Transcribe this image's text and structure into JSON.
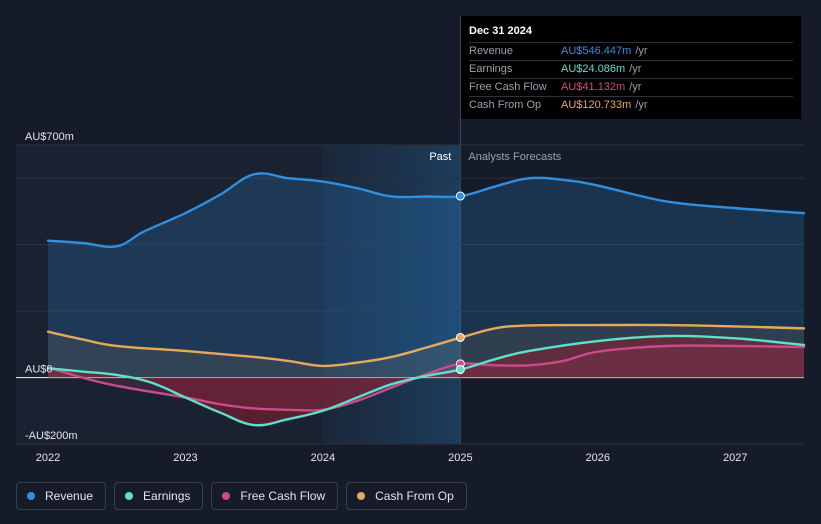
{
  "chart_data": {
    "type": "area",
    "y_unit": "AU$m",
    "ylim": [
      -200,
      700
    ],
    "y_axis_labels": [
      {
        "value": 700,
        "label": "AU$700m"
      },
      {
        "value": 0,
        "label": "AU$0"
      },
      {
        "value": -200,
        "label": "-AU$200m"
      }
    ],
    "gridlines": [
      700,
      600,
      400,
      200,
      0,
      -200
    ],
    "xlim": [
      2021.9,
      2027.5
    ],
    "x_ticks": [
      {
        "value": 2022,
        "label": "2022"
      },
      {
        "value": 2023,
        "label": "2023"
      },
      {
        "value": 2024,
        "label": "2024"
      },
      {
        "value": 2025,
        "label": "2025"
      },
      {
        "value": 2026,
        "label": "2026"
      },
      {
        "value": 2027,
        "label": "2027"
      }
    ],
    "divider_x": 2025.0,
    "highlight_start_x": 2024.0,
    "region_labels": {
      "past": "Past",
      "forecast": "Analysts Forecasts"
    },
    "series": [
      {
        "name": "Revenue",
        "color": "#2f8fe0",
        "points": [
          [
            2022.0,
            412
          ],
          [
            2022.25,
            405
          ],
          [
            2022.5,
            395
          ],
          [
            2022.7,
            440
          ],
          [
            2023.0,
            495
          ],
          [
            2023.25,
            550
          ],
          [
            2023.5,
            612
          ],
          [
            2023.75,
            600
          ],
          [
            2024.0,
            590
          ],
          [
            2024.25,
            570
          ],
          [
            2024.5,
            545
          ],
          [
            2024.75,
            545
          ],
          [
            2025.0,
            546
          ],
          [
            2025.25,
            575
          ],
          [
            2025.5,
            600
          ],
          [
            2025.75,
            595
          ],
          [
            2026.0,
            578
          ],
          [
            2026.5,
            530
          ],
          [
            2027.0,
            510
          ],
          [
            2027.5,
            495
          ]
        ]
      },
      {
        "name": "Cash From Op",
        "color": "#e8a85b",
        "points": [
          [
            2022.0,
            138
          ],
          [
            2022.25,
            115
          ],
          [
            2022.5,
            95
          ],
          [
            2023.0,
            80
          ],
          [
            2023.5,
            62
          ],
          [
            2023.75,
            50
          ],
          [
            2024.0,
            35
          ],
          [
            2024.25,
            45
          ],
          [
            2024.5,
            62
          ],
          [
            2024.75,
            90
          ],
          [
            2025.0,
            120
          ],
          [
            2025.25,
            148
          ],
          [
            2025.5,
            157
          ],
          [
            2026.0,
            158
          ],
          [
            2026.5,
            158
          ],
          [
            2027.0,
            154
          ],
          [
            2027.5,
            148
          ]
        ]
      },
      {
        "name": "Free Cash Flow",
        "color": "#cc4a8a",
        "points": [
          [
            2022.0,
            30
          ],
          [
            2022.25,
            0
          ],
          [
            2022.5,
            -25
          ],
          [
            2023.0,
            -60
          ],
          [
            2023.25,
            -80
          ],
          [
            2023.5,
            -93
          ],
          [
            2023.75,
            -97
          ],
          [
            2024.0,
            -97
          ],
          [
            2024.25,
            -70
          ],
          [
            2024.5,
            -30
          ],
          [
            2024.75,
            10
          ],
          [
            2025.0,
            41
          ],
          [
            2025.25,
            37
          ],
          [
            2025.5,
            37
          ],
          [
            2025.75,
            50
          ],
          [
            2026.0,
            78
          ],
          [
            2026.5,
            95
          ],
          [
            2027.0,
            95
          ],
          [
            2027.5,
            92
          ]
        ]
      },
      {
        "name": "Earnings",
        "color": "#5fe0c9",
        "points": [
          [
            2022.0,
            28
          ],
          [
            2022.25,
            18
          ],
          [
            2022.5,
            8
          ],
          [
            2022.75,
            -15
          ],
          [
            2023.0,
            -60
          ],
          [
            2023.25,
            -105
          ],
          [
            2023.5,
            -143
          ],
          [
            2023.75,
            -125
          ],
          [
            2024.0,
            -100
          ],
          [
            2024.25,
            -60
          ],
          [
            2024.5,
            -20
          ],
          [
            2024.75,
            5
          ],
          [
            2025.0,
            24
          ],
          [
            2025.25,
            55
          ],
          [
            2025.5,
            80
          ],
          [
            2026.0,
            110
          ],
          [
            2026.5,
            125
          ],
          [
            2027.0,
            118
          ],
          [
            2027.5,
            98
          ]
        ]
      }
    ],
    "markers": [
      {
        "series": "Revenue",
        "x": 2025.0,
        "y": 546.447
      },
      {
        "series": "Cash From Op",
        "x": 2025.0,
        "y": 120.733
      },
      {
        "series": "Free Cash Flow",
        "x": 2025.0,
        "y": 41.132
      },
      {
        "series": "Earnings",
        "x": 2025.0,
        "y": 24.086
      }
    ]
  },
  "tooltip": {
    "date": "Dec 31 2024",
    "unit": "/yr",
    "rows": [
      {
        "name": "Revenue",
        "value": "AU$546.447m",
        "color": "#2f8fe0"
      },
      {
        "name": "Earnings",
        "value": "AU$24.086m",
        "color": "#5fe0c9"
      },
      {
        "name": "Free Cash Flow",
        "value": "AU$41.132m",
        "color": "#cc4a8a"
      },
      {
        "name": "Cash From Op",
        "value": "AU$120.733m",
        "color": "#e8a85b"
      }
    ]
  },
  "legend": [
    {
      "label": "Revenue",
      "color": "#2f8fe0"
    },
    {
      "label": "Earnings",
      "color": "#5fe0c9"
    },
    {
      "label": "Free Cash Flow",
      "color": "#cc4a8a"
    },
    {
      "label": "Cash From Op",
      "color": "#e8a85b"
    }
  ]
}
